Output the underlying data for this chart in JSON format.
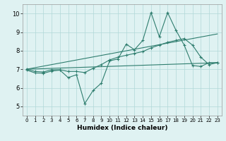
{
  "xlabel": "Humidex (Indice chaleur)",
  "bg_color": "#dff2f2",
  "grid_color": "#b0d8d8",
  "line_color": "#2e7d6e",
  "xlim": [
    -0.5,
    23.5
  ],
  "ylim": [
    4.5,
    10.5
  ],
  "xticks": [
    0,
    1,
    2,
    3,
    4,
    5,
    6,
    7,
    8,
    9,
    10,
    11,
    12,
    13,
    14,
    15,
    16,
    17,
    18,
    19,
    20,
    21,
    22,
    23
  ],
  "yticks": [
    5,
    6,
    7,
    8,
    9,
    10
  ],
  "series": [
    {
      "x": [
        0,
        1,
        2,
        3,
        4,
        5,
        6,
        7,
        8,
        9,
        10,
        11,
        12,
        13,
        14,
        15,
        16,
        17,
        18,
        19,
        20,
        21,
        22,
        23
      ],
      "y": [
        6.95,
        6.8,
        6.78,
        6.9,
        6.95,
        6.55,
        6.7,
        5.15,
        5.85,
        6.25,
        7.45,
        7.55,
        8.35,
        8.05,
        8.55,
        10.05,
        8.75,
        10.05,
        9.1,
        8.3,
        7.2,
        7.15,
        7.35,
        7.35
      ],
      "marker": true
    },
    {
      "x": [
        0,
        1,
        2,
        3,
        4,
        5,
        6,
        7,
        8,
        9,
        10,
        11,
        12,
        13,
        14,
        15,
        16,
        17,
        18,
        19,
        20,
        21,
        22,
        23
      ],
      "y": [
        7.0,
        6.88,
        6.85,
        6.97,
        6.97,
        6.88,
        6.88,
        6.82,
        7.05,
        7.25,
        7.5,
        7.65,
        7.75,
        7.85,
        7.95,
        8.15,
        8.3,
        8.45,
        8.55,
        8.65,
        8.3,
        7.65,
        7.25,
        7.35
      ],
      "marker": true
    },
    {
      "x": [
        0,
        23
      ],
      "y": [
        7.0,
        7.35
      ],
      "marker": false
    },
    {
      "x": [
        0,
        23
      ],
      "y": [
        7.0,
        8.9
      ],
      "marker": false
    }
  ]
}
